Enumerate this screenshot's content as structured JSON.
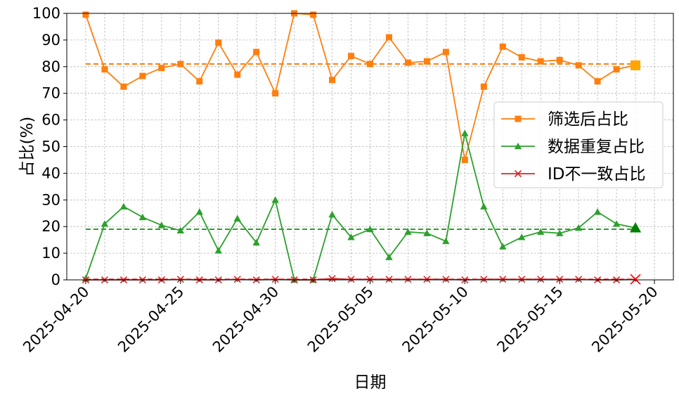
{
  "chart_data": {
    "type": "line",
    "xlabel": "日期",
    "ylabel": "占比(%)",
    "ylim": [
      0,
      100
    ],
    "yticks": [
      0,
      10,
      20,
      30,
      40,
      50,
      60,
      70,
      80,
      90,
      100
    ],
    "xlim": [
      "2025-04-19",
      "2025-05-21"
    ],
    "xticks": [
      "2025-04-20",
      "2025-04-25",
      "2025-04-30",
      "2025-05-05",
      "2025-05-10",
      "2025-05-15",
      "2025-05-20"
    ],
    "grid": true,
    "legend_position": "center-right",
    "x": [
      "2025-04-20",
      "2025-04-21",
      "2025-04-22",
      "2025-04-23",
      "2025-04-24",
      "2025-04-25",
      "2025-04-26",
      "2025-04-27",
      "2025-04-28",
      "2025-04-29",
      "2025-04-30",
      "2025-05-01",
      "2025-05-02",
      "2025-05-03",
      "2025-05-04",
      "2025-05-05",
      "2025-05-06",
      "2025-05-07",
      "2025-05-08",
      "2025-05-09",
      "2025-05-10",
      "2025-05-11",
      "2025-05-12",
      "2025-05-13",
      "2025-05-14",
      "2025-05-15",
      "2025-05-16",
      "2025-05-17",
      "2025-05-18",
      "2025-05-19"
    ],
    "series": [
      {
        "name": "筛选后占比",
        "color": "#ff7f0e",
        "marker": "square",
        "values": [
          99.5,
          79.0,
          72.5,
          76.5,
          79.5,
          81.0,
          74.5,
          89.0,
          77.0,
          85.5,
          70.0,
          100.0,
          99.5,
          75.0,
          84.0,
          81.0,
          91.0,
          81.5,
          82.0,
          85.5,
          45.0,
          72.5,
          87.5,
          83.5,
          82.0,
          82.5,
          80.5,
          74.5,
          79.0,
          80.5
        ],
        "mean": 81.0
      },
      {
        "name": "数据重复占比",
        "color": "#2ca02c",
        "marker": "triangle",
        "values": [
          0.5,
          21.0,
          27.5,
          23.5,
          20.5,
          18.5,
          25.5,
          11.0,
          23.0,
          14.0,
          30.0,
          0.0,
          0.0,
          24.5,
          16.0,
          19.0,
          8.5,
          18.0,
          17.5,
          14.5,
          55.0,
          27.5,
          12.5,
          16.0,
          18.0,
          17.5,
          19.5,
          25.5,
          21.0,
          19.5
        ],
        "mean": 19.0
      },
      {
        "name": "ID不一致占比",
        "color": "#d62728",
        "marker": "x",
        "values": [
          0,
          0,
          0,
          0,
          0,
          0.2,
          0,
          0,
          0.2,
          0,
          0.2,
          0,
          0,
          0.5,
          0.2,
          0.2,
          0.2,
          0.2,
          0.2,
          0.2,
          0,
          0.2,
          0.2,
          0.2,
          0.2,
          0.2,
          0.2,
          0,
          0,
          0.2
        ],
        "mean": 0.2
      }
    ],
    "highlight": {
      "x": "2025-05-19",
      "colors": [
        "#ffa500",
        "#008000",
        "#ff0000"
      ]
    }
  }
}
